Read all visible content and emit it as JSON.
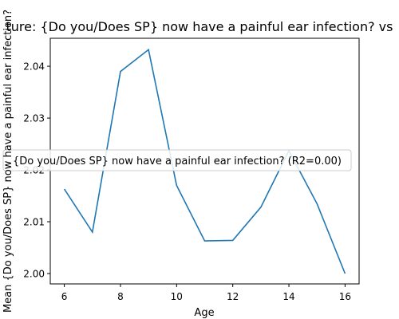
{
  "chart_data": {
    "type": "line",
    "title": "ture: {Do you/Does SP} now have a painful ear infection? vs",
    "xlabel": "Age",
    "ylabel": "Mean {Do you/Does SP} now have a painful ear infection?",
    "legend_text": "{Do you/Does SP} now have a painful ear infection? (R2=0.00)",
    "legend_position": "center",
    "x": [
      6,
      7,
      8,
      9,
      10,
      11,
      12,
      13,
      14,
      15,
      16
    ],
    "series": [
      {
        "values": [
          2.0163,
          2.008,
          2.039,
          2.0432,
          2.017,
          2.0063,
          2.0064,
          2.0128,
          2.0237,
          2.0135,
          2.0
        ]
      }
    ],
    "xlim": [
      5.5,
      16.5
    ],
    "ylim": [
      1.998,
      2.0454
    ],
    "xticks": [
      6,
      8,
      10,
      12,
      14,
      16
    ],
    "yticks": [
      2.0,
      2.01,
      2.02,
      2.03,
      2.04
    ],
    "ytick_labels": [
      "2.00",
      "2.01",
      "2.02",
      "2.03",
      "2.04"
    ],
    "grid": false,
    "colors": {
      "line": "#1f77b4",
      "axes": "#000000",
      "legend_edge": "#cccccc"
    }
  }
}
